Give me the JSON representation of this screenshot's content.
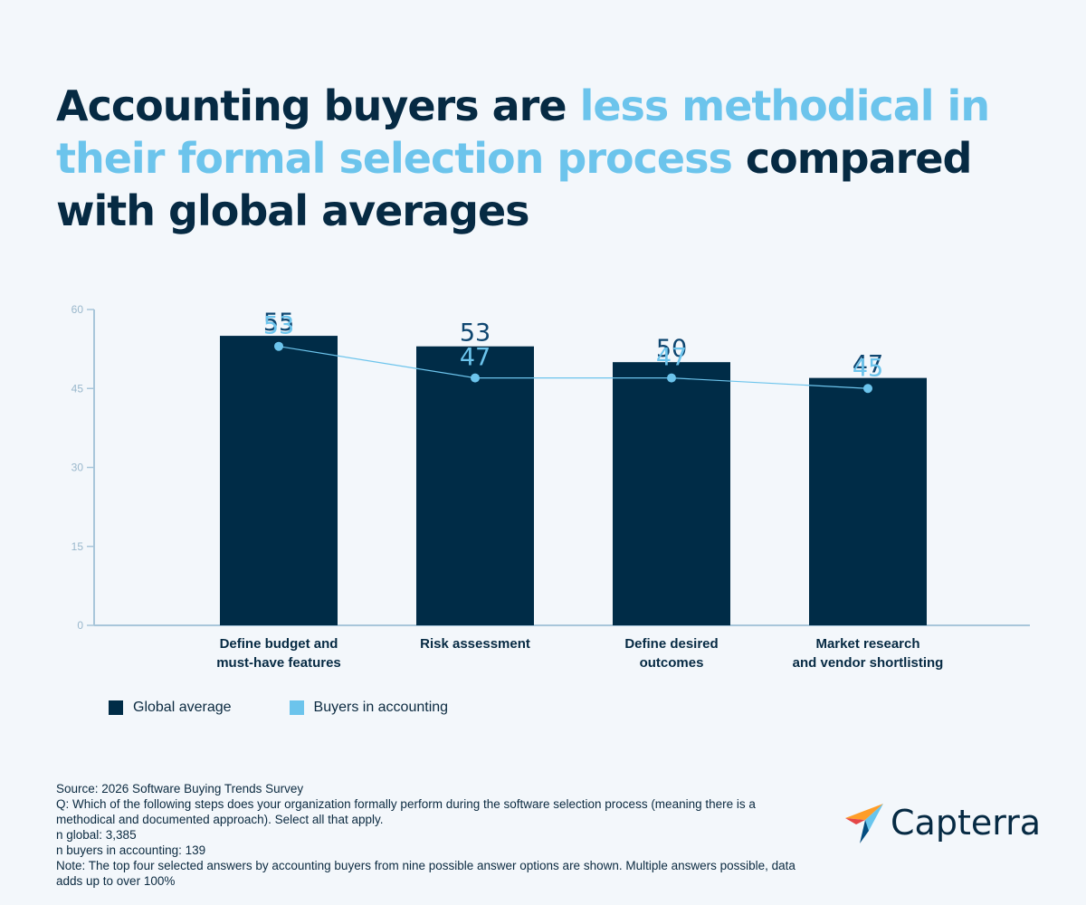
{
  "title": {
    "part1": "Accounting buyers are ",
    "highlight": "less methodical in their formal selection process",
    "part2": " compared with global averages"
  },
  "chart_data": {
    "type": "bar",
    "categories": [
      [
        "Define budget and",
        "must-have features"
      ],
      [
        "Risk assessment"
      ],
      [
        "Define desired",
        "outcomes"
      ],
      [
        "Market research",
        "and vendor shortlisting"
      ]
    ],
    "series": [
      {
        "name": "Global average",
        "type": "bar",
        "values": [
          55,
          53,
          50,
          47
        ],
        "color": "#002c47"
      },
      {
        "name": "Buyers in accounting",
        "type": "line",
        "values": [
          53,
          47,
          47,
          45
        ],
        "color": "#6cc4ec"
      }
    ],
    "yticks": [
      0,
      15,
      30,
      45,
      60
    ],
    "ylim": [
      0,
      60
    ]
  },
  "legend": {
    "global": "Global average",
    "accounting": "Buyers in accounting"
  },
  "notes": [
    "Source: 2026 Software Buying Trends Survey",
    "Q: Which of the following steps does your organization formally perform during the software selection process (meaning there is a methodical and documented approach). Select all that apply.",
    "n global: 3,385",
    "n buyers in accounting: 139",
    "Note: The top four selected answers by accounting buyers from nine possible answer options are shown. Multiple answers possible, data adds up to over 100%"
  ],
  "logo": {
    "text": "Capterra"
  },
  "colors": {
    "dark": "#002c47",
    "accent": "#6cc4ec",
    "axis": "#a8c6da"
  }
}
